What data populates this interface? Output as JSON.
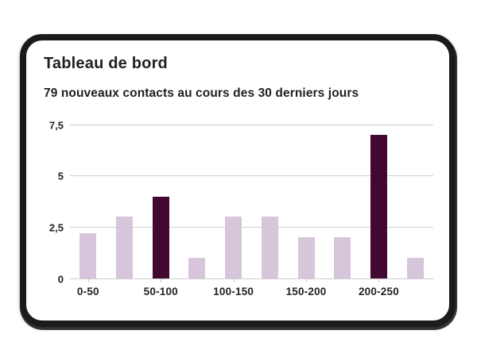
{
  "card": {
    "title": "Tableau de bord",
    "subtitle": "79 nouveaux contacts au cours des 30 derniers jours"
  },
  "chart_data": {
    "type": "bar",
    "title": "Tableau de bord",
    "subtitle": "79 nouveaux contacts au cours des 30 derniers jours",
    "categories": [
      "0-50",
      "50-100",
      "100-150",
      "150-200",
      "200-250"
    ],
    "category_positions": [
      0,
      2,
      4,
      6,
      8
    ],
    "values": [
      2.2,
      3,
      4,
      1,
      3,
      3,
      2,
      2,
      7,
      1
    ],
    "highlight_indexes": [
      2,
      8
    ],
    "xlabel": "",
    "ylabel": "",
    "ylim": [
      0,
      7.5
    ],
    "yticks": [
      0,
      2.5,
      5,
      7.5
    ],
    "ytick_labels": [
      "0",
      "2,5",
      "5",
      "7,5"
    ],
    "grid": true,
    "legend": "none",
    "colors": {
      "bar_light": "#d7c5db",
      "bar_dark": "#42082f",
      "gridline": "#cfcfcf",
      "text": "#1f1f1f",
      "card_border": "#1b1b1b"
    }
  }
}
